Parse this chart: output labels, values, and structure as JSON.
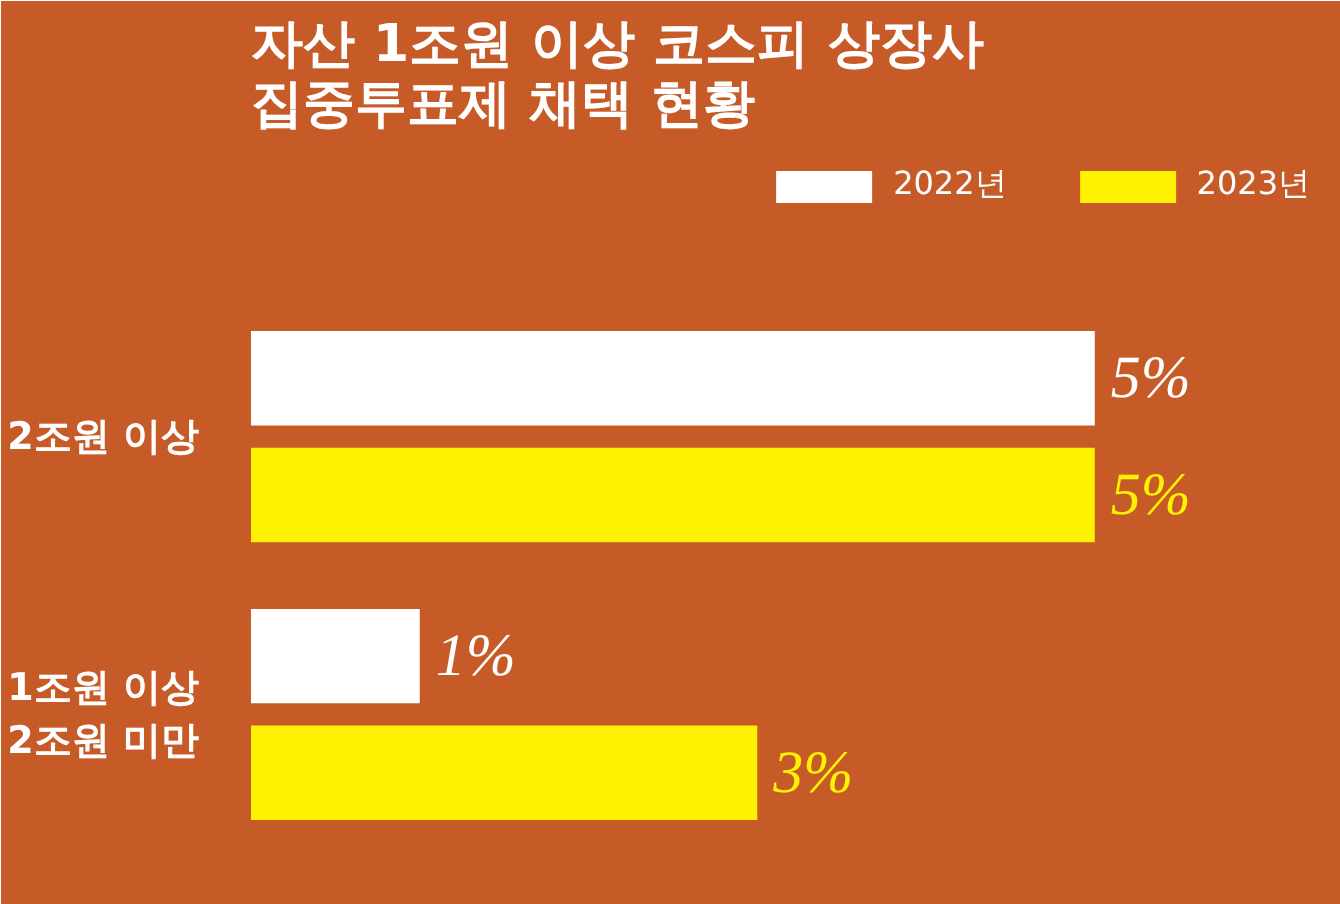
{
  "chart_data": {
    "type": "bar",
    "orientation": "horizontal",
    "title": "자산 1조원 이상 코스피 상장사\n집중투표제 채택 현황",
    "categories": [
      "2조원 이상",
      "1조원 이상\n2조원 미만"
    ],
    "series": [
      {
        "name": "2022년",
        "color": "#ffffff",
        "values": [
          5,
          1
        ],
        "value_labels": [
          "5%",
          "1%"
        ]
      },
      {
        "name": "2023년",
        "color": "#fff200",
        "values": [
          5,
          3
        ],
        "value_labels": [
          "5%",
          "3%"
        ]
      }
    ],
    "legend": "top right",
    "grid": false,
    "tick_labels": "y"
  }
}
